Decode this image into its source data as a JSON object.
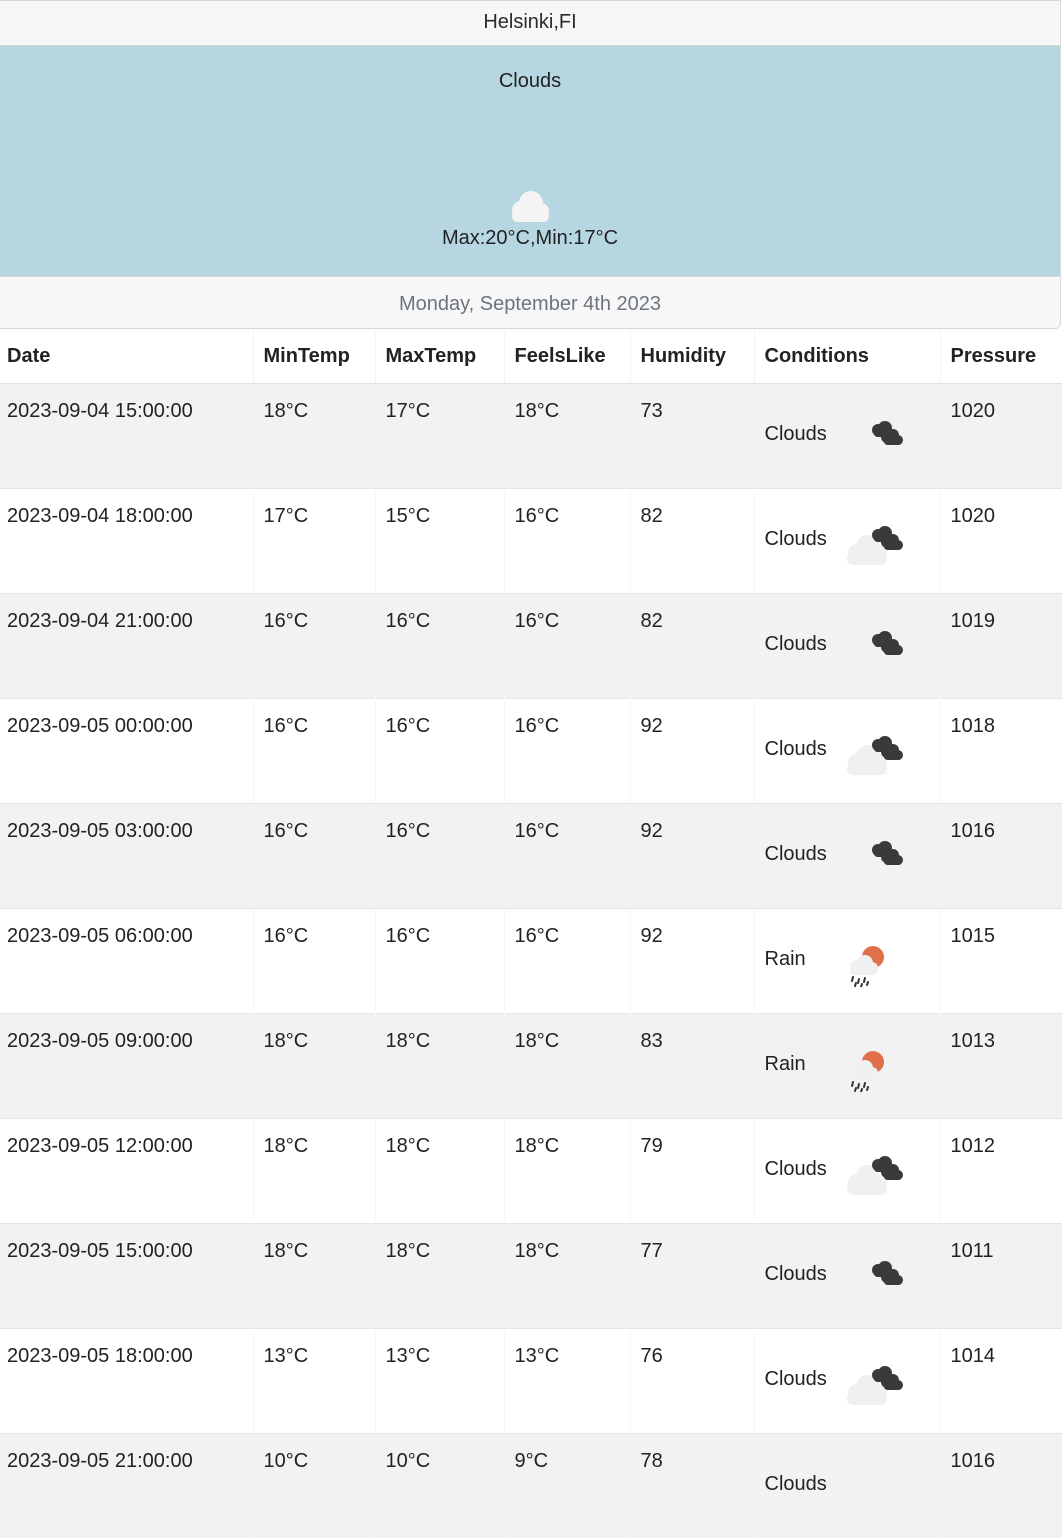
{
  "header": {
    "city": "Helsinki,FI"
  },
  "current": {
    "condition": "Clouds",
    "icon": "cloud-icon",
    "range": "Max:20°C,Min:17°C"
  },
  "footer": {
    "date": "Monday, September 4th 2023"
  },
  "colors": {
    "banner_bg": "#b6d7e2",
    "row_stripe": "#f2f2f2",
    "sun": "#e0704a",
    "dark_cloud": "#3a3a3a",
    "light_cloud": "#f0f0f0"
  },
  "table": {
    "columns": [
      "Date",
      "MinTemp",
      "MaxTemp",
      "FeelsLike",
      "Humidity",
      "Conditions",
      "Pressure"
    ],
    "rows": [
      {
        "date": "2023-09-04 15:00:00",
        "min": "18°C",
        "max": "17°C",
        "feels": "18°C",
        "humidity": "73",
        "condition": "Clouds",
        "icon": "broken-clouds-icon",
        "pressure": "1020"
      },
      {
        "date": "2023-09-04 18:00:00",
        "min": "17°C",
        "max": "15°C",
        "feels": "16°C",
        "humidity": "82",
        "condition": "Clouds",
        "icon": "overcast-clouds-icon",
        "pressure": "1020"
      },
      {
        "date": "2023-09-04 21:00:00",
        "min": "16°C",
        "max": "16°C",
        "feels": "16°C",
        "humidity": "82",
        "condition": "Clouds",
        "icon": "broken-clouds-icon",
        "pressure": "1019"
      },
      {
        "date": "2023-09-05 00:00:00",
        "min": "16°C",
        "max": "16°C",
        "feels": "16°C",
        "humidity": "92",
        "condition": "Clouds",
        "icon": "overcast-clouds-icon",
        "pressure": "1018"
      },
      {
        "date": "2023-09-05 03:00:00",
        "min": "16°C",
        "max": "16°C",
        "feels": "16°C",
        "humidity": "92",
        "condition": "Clouds",
        "icon": "broken-clouds-icon",
        "pressure": "1016"
      },
      {
        "date": "2023-09-05 06:00:00",
        "min": "16°C",
        "max": "16°C",
        "feels": "16°C",
        "humidity": "92",
        "condition": "Rain",
        "icon": "rain-sun-icon",
        "pressure": "1015"
      },
      {
        "date": "2023-09-05 09:00:00",
        "min": "18°C",
        "max": "18°C",
        "feels": "18°C",
        "humidity": "83",
        "condition": "Rain",
        "icon": "rain-sun-icon",
        "pressure": "1013"
      },
      {
        "date": "2023-09-05 12:00:00",
        "min": "18°C",
        "max": "18°C",
        "feels": "18°C",
        "humidity": "79",
        "condition": "Clouds",
        "icon": "overcast-clouds-icon",
        "pressure": "1012"
      },
      {
        "date": "2023-09-05 15:00:00",
        "min": "18°C",
        "max": "18°C",
        "feels": "18°C",
        "humidity": "77",
        "condition": "Clouds",
        "icon": "broken-clouds-icon",
        "pressure": "1011"
      },
      {
        "date": "2023-09-05 18:00:00",
        "min": "13°C",
        "max": "13°C",
        "feels": "13°C",
        "humidity": "76",
        "condition": "Clouds",
        "icon": "overcast-clouds-icon",
        "pressure": "1014"
      },
      {
        "date": "2023-09-05 21:00:00",
        "min": "10°C",
        "max": "10°C",
        "feels": "9°C",
        "humidity": "78",
        "condition": "Clouds",
        "icon": "scattered-clouds-icon",
        "pressure": "1016"
      }
    ]
  }
}
